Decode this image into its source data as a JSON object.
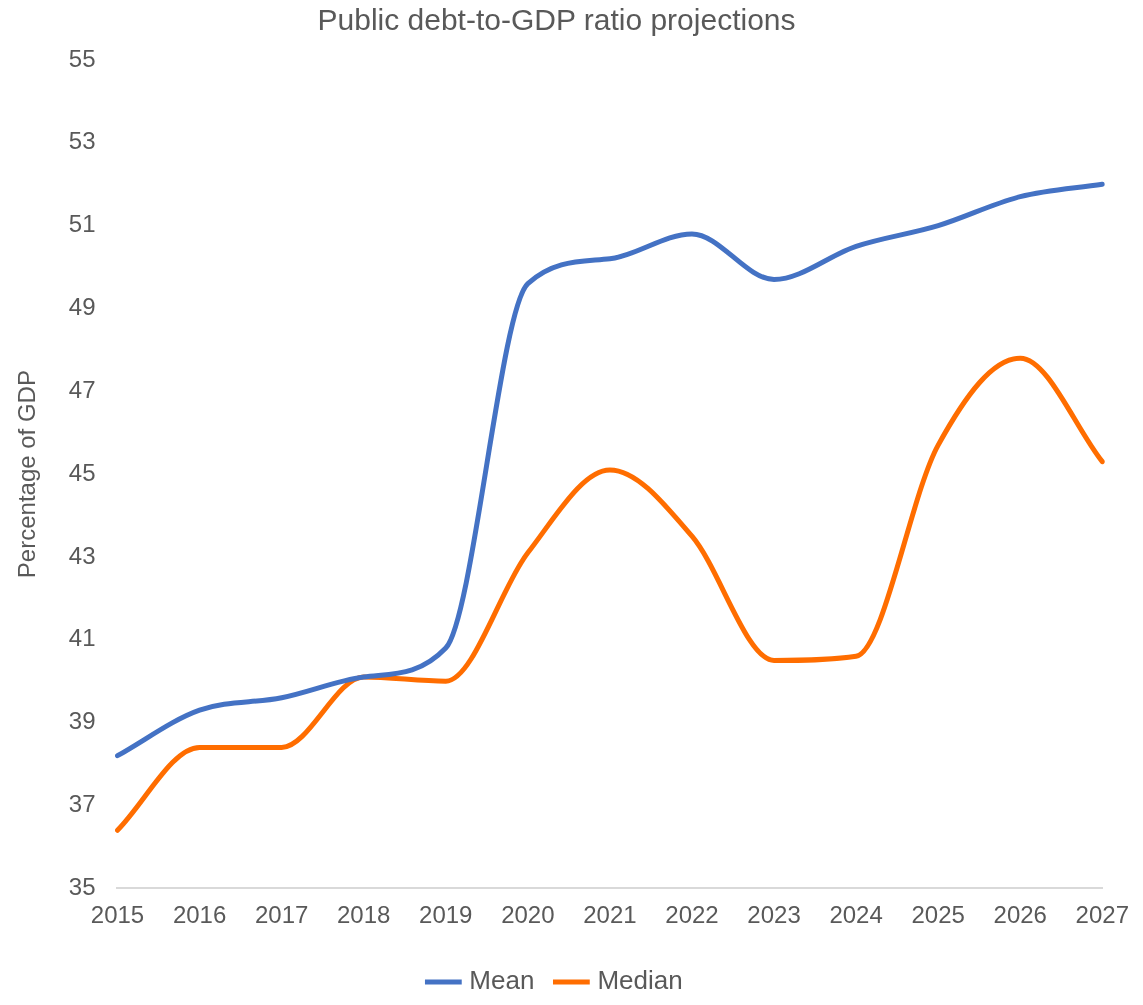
{
  "chart_data": {
    "type": "line",
    "title": "Public debt-to-GDP ratio projections",
    "ylabel": "Percentage of GDP",
    "categories": [
      "2015",
      "2016",
      "2017",
      "2018",
      "2019",
      "2020",
      "2021",
      "2022",
      "2023",
      "2024",
      "2025",
      "2026",
      "2027"
    ],
    "series": [
      {
        "name": "Mean",
        "color": "#4472c4",
        "values": [
          38.2,
          39.3,
          39.6,
          40.1,
          40.8,
          49.6,
          50.2,
          50.8,
          49.7,
          50.5,
          51.0,
          51.7,
          52.0
        ]
      },
      {
        "name": "Median",
        "color": "#ff6d00",
        "values": [
          36.4,
          38.4,
          38.4,
          40.1,
          40.0,
          43.1,
          45.1,
          43.5,
          40.5,
          40.6,
          45.7,
          47.8,
          45.3
        ]
      }
    ],
    "ylim": [
      35,
      55
    ],
    "yticks": [
      35,
      37,
      39,
      41,
      43,
      45,
      47,
      49,
      51,
      53,
      55
    ],
    "grid": false,
    "legend": "bottom",
    "marker": "none",
    "line_style": "solid"
  }
}
